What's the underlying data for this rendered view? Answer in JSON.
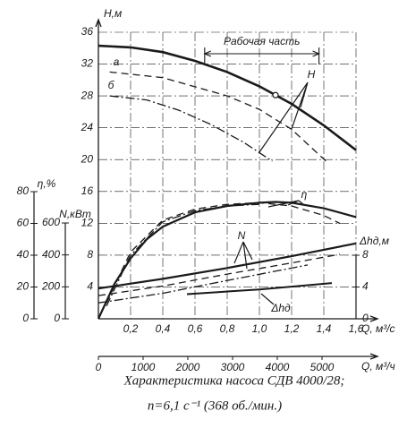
{
  "chart_data": {
    "type": "line",
    "title": "Характеристика насоса СДВ 4000/28;",
    "subtitle": "n=6,1 с⁻¹ (368 об./мин.)",
    "color": "#1a1a1a",
    "grid": true,
    "x_label": "Q, м³/с",
    "xlim": [
      0,
      1.6
    ],
    "xticks": [
      {
        "value": 0.2,
        "label": "0,2"
      },
      {
        "value": 0.4,
        "label": "0,4"
      },
      {
        "value": 0.6,
        "label": "0,6"
      },
      {
        "value": 0.8,
        "label": "0,8"
      },
      {
        "value": 1.0,
        "label": "1,0"
      },
      {
        "value": 1.2,
        "label": "1,2"
      },
      {
        "value": 1.4,
        "label": "1,4"
      },
      {
        "value": 1.6,
        "label": "1,6"
      }
    ],
    "x2_label": "Q, м³/ч",
    "x2lim": [
      0,
      5760
    ],
    "x2ticks": [
      0,
      1000,
      2000,
      3000,
      4000,
      5000
    ],
    "y_label": "H,м",
    "ylim": [
      0,
      36
    ],
    "yticks": [
      4,
      8,
      12,
      16,
      20,
      24,
      28,
      32,
      36
    ],
    "eta_label": "η,%",
    "etalim": [
      0,
      80
    ],
    "etaticks": [
      0,
      20,
      40,
      60,
      80
    ],
    "n_label": "N,кВт",
    "nlim": [
      0,
      600
    ],
    "nticks": [
      0,
      200,
      400,
      600
    ],
    "dh_label": "Δhд,м",
    "dhlim": [
      0,
      8
    ],
    "dhticks": [
      0,
      4,
      8
    ],
    "working_zone": {
      "label": "Рабочая часть",
      "range": [
        0.66,
        1.37
      ]
    },
    "design_point": {
      "x": 1.1,
      "y": 28.1
    },
    "series": [
      {
        "label": "H",
        "axis": "y",
        "style": "solid",
        "width": 2.6,
        "x": [
          0,
          0.2,
          0.4,
          0.6,
          0.8,
          1.0,
          1.2,
          1.4,
          1.6
        ],
        "values": [
          34.3,
          34.1,
          33.5,
          32.4,
          31,
          29.2,
          27,
          24.3,
          21.2
        ]
      },
      {
        "label": "а",
        "axis": "y",
        "style": "dashed",
        "width": 1.3,
        "x": [
          0.07,
          0.4,
          0.8,
          1.0,
          1.2,
          1.43
        ],
        "values": [
          31,
          30.3,
          28,
          26.3,
          23.8,
          19.5
        ]
      },
      {
        "label": "б",
        "axis": "y",
        "style": "dashdot",
        "width": 1.3,
        "x": [
          0.07,
          0.3,
          0.5,
          0.7,
          0.9,
          1.08
        ],
        "values": [
          28,
          27.5,
          26.2,
          24.4,
          22.2,
          19.8
        ]
      },
      {
        "label": "η",
        "axis": "eta",
        "style": "solid",
        "width": 2.2,
        "x": [
          0,
          0.1,
          0.2,
          0.3,
          0.4,
          0.6,
          0.8,
          1.0,
          1.1,
          1.2,
          1.4,
          1.6
        ],
        "values": [
          0,
          22,
          38,
          50,
          58,
          67,
          71,
          73,
          73.5,
          73,
          69.5,
          64
        ]
      },
      {
        "axis": "eta",
        "style": "dashed",
        "width": 1.3,
        "x": [
          0.05,
          0.2,
          0.4,
          0.6,
          0.8,
          1.0,
          1.2,
          1.4,
          1.5
        ],
        "values": [
          10,
          42,
          62,
          69,
          72,
          73,
          71,
          65,
          60
        ]
      },
      {
        "axis": "eta",
        "style": "dashdot",
        "width": 1.3,
        "x": [
          0.05,
          0.2,
          0.4,
          0.6,
          0.8,
          1.0
        ],
        "values": [
          8,
          40,
          61,
          68,
          71,
          72
        ]
      },
      {
        "label": "N",
        "axis": "n",
        "style": "solid",
        "width": 2.2,
        "x": [
          0,
          0.4,
          0.8,
          1.2,
          1.6
        ],
        "values": [
          190,
          250,
          318,
          392,
          472
        ]
      },
      {
        "axis": "n",
        "style": "dashed",
        "width": 1.3,
        "x": [
          0,
          0.4,
          0.8,
          1.2,
          1.5
        ],
        "values": [
          145,
          205,
          280,
          350,
          404
        ]
      },
      {
        "axis": "n",
        "style": "dashdot",
        "width": 1.3,
        "x": [
          0,
          0.4,
          0.8,
          1.3
        ],
        "values": [
          100,
          160,
          240,
          337
        ]
      },
      {
        "label": "Δhд",
        "axis": "dh",
        "style": "solid",
        "width": 2.0,
        "x": [
          0.55,
          1.0,
          1.45
        ],
        "values": [
          3.1,
          3.7,
          4.5
        ]
      }
    ]
  }
}
